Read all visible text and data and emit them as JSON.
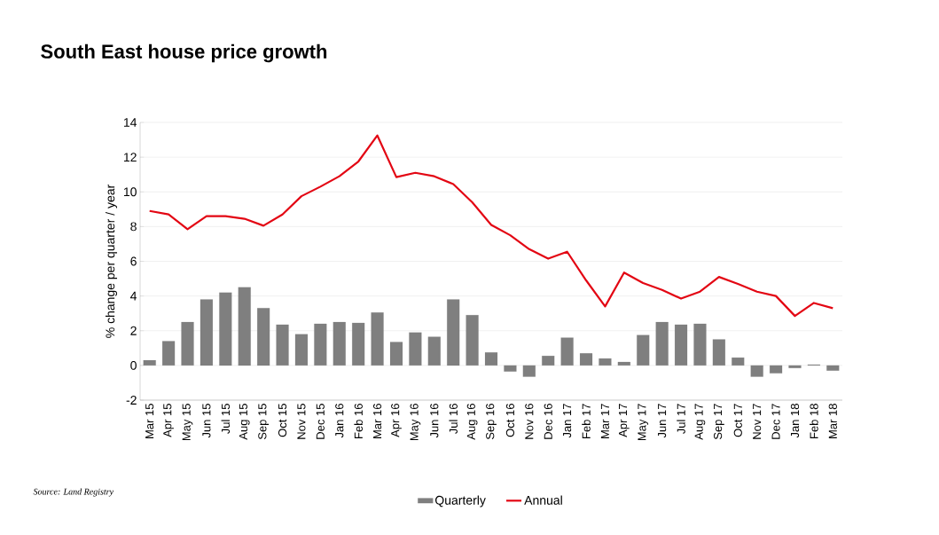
{
  "chart_data": {
    "type": "bar",
    "title": "South East house price growth",
    "ylabel": "% change per quarter / year",
    "annotations": [
      "Source: Land Registry"
    ],
    "categories": [
      "Mar 15",
      "Apr 15",
      "May 15",
      "Jun 15",
      "Jul 15",
      "Aug 15",
      "Sep 15",
      "Oct 15",
      "Nov 15",
      "Dec 15",
      "Jan 16",
      "Feb 16",
      "Mar 16",
      "Apr 16",
      "May 16",
      "Jun 16",
      "Jul 16",
      "Aug 16",
      "Sep 16",
      "Oct 16",
      "Nov 16",
      "Dec 16",
      "Jan 17",
      "Feb 17",
      "Mar 17",
      "Apr 17",
      "May 17",
      "Jun 17",
      "Jul 17",
      "Aug 17",
      "Sep 17",
      "Oct 17",
      "Nov 17",
      "Dec 17",
      "Jan 18",
      "Feb 18",
      "Mar 18"
    ],
    "series": [
      {
        "name": "Quarterly",
        "color": "#7f7f7f",
        "values": [
          0.3,
          1.4,
          2.5,
          3.8,
          4.2,
          4.5,
          3.3,
          2.35,
          1.8,
          2.4,
          2.5,
          2.45,
          3.05,
          1.35,
          1.9,
          1.65,
          3.8,
          2.9,
          0.75,
          -0.35,
          -0.65,
          0.55,
          1.6,
          0.7,
          0.4,
          0.2,
          1.75,
          2.5,
          2.35,
          2.4,
          1.5,
          0.45,
          -0.65,
          -0.45,
          -0.15,
          0.05,
          -0.3
        ]
      },
      {
        "name": "Annual",
        "type": "line",
        "color": "#e30613",
        "values": [
          8.9,
          8.7,
          7.85,
          8.6,
          8.6,
          8.45,
          8.05,
          8.7,
          9.75,
          10.3,
          10.9,
          11.75,
          13.25,
          10.85,
          11.1,
          10.9,
          10.45,
          9.4,
          8.1,
          7.5,
          6.7,
          6.15,
          6.55,
          4.9,
          3.4,
          5.35,
          4.75,
          4.35,
          3.85,
          4.25,
          5.1,
          4.7,
          4.25,
          4.0,
          2.85,
          3.6,
          3.3
        ]
      }
    ],
    "ylim": [
      -2,
      14
    ],
    "yticks": [
      -2,
      0,
      2,
      4,
      6,
      8,
      10,
      12,
      14
    ],
    "grid": "y",
    "legend": "bottom"
  }
}
